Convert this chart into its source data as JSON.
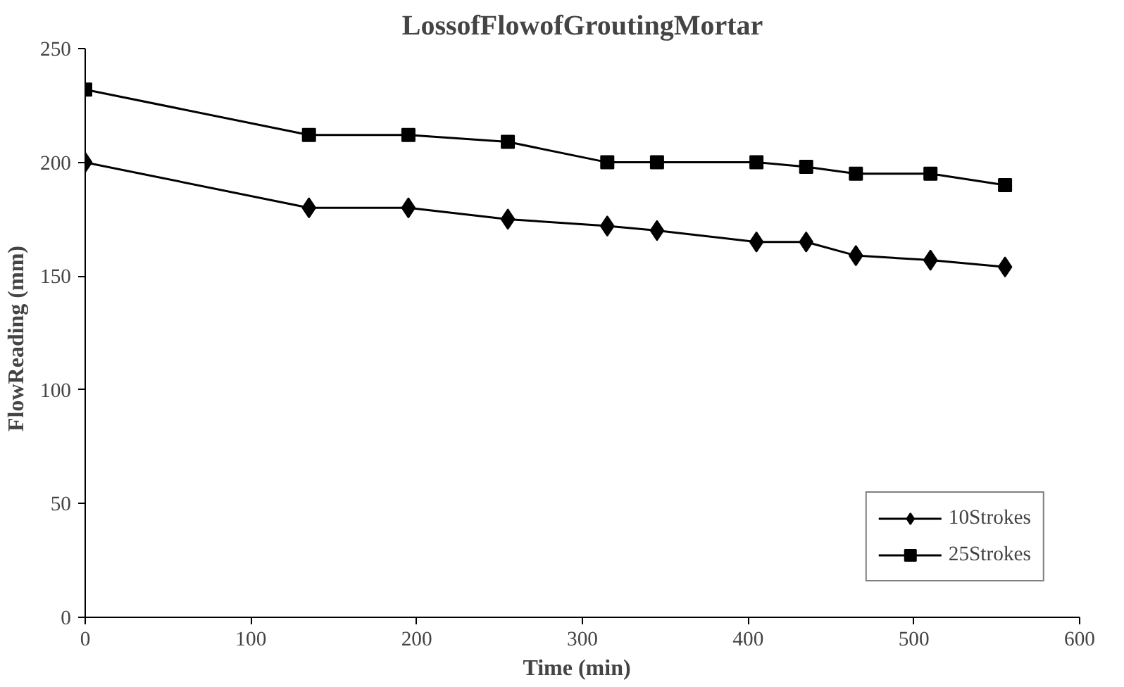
{
  "chart_data": {
    "type": "line",
    "title": "LossofFlowofGroutingMortar",
    "xlabel": "Time   (min)",
    "ylabel": "FlowReading   (mm)",
    "x": [
      0,
      135,
      195,
      255,
      315,
      345,
      405,
      435,
      465,
      510,
      555
    ],
    "series": [
      {
        "name": "10Strokes",
        "color": "#000000",
        "marker": "diamond",
        "values": [
          200,
          180,
          180,
          175,
          172,
          170,
          165,
          165,
          159,
          157,
          154
        ]
      },
      {
        "name": "25Strokes",
        "color": "#000000",
        "marker": "square",
        "values": [
          232,
          212,
          212,
          209,
          200,
          200,
          200,
          198,
          195,
          195,
          190
        ]
      }
    ],
    "xlim": [
      0,
      600
    ],
    "xticks": [
      0,
      100,
      200,
      300,
      400,
      500,
      600
    ],
    "ylim": [
      0,
      250
    ],
    "yticks": [
      0,
      50,
      100,
      150,
      200,
      250
    ],
    "grid": false,
    "legend": "bottom right",
    "line_style": "solid"
  }
}
